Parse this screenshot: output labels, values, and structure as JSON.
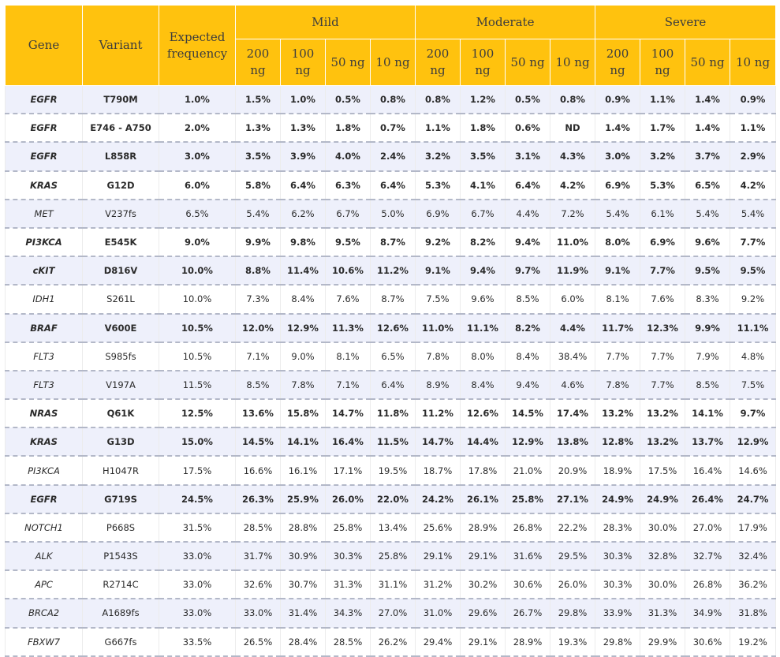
{
  "header": {
    "gene": "Gene",
    "variant": "Variant",
    "expected": "Expected frequency",
    "groups": [
      "Mild",
      "Moderate",
      "Severe"
    ],
    "amounts": [
      "200 ng",
      "100 ng",
      "50 ng",
      "10 ng"
    ]
  },
  "rows": [
    {
      "gene": "EGFR",
      "variant": "T790M",
      "expected": "1.0%",
      "vals": [
        "1.5%",
        "1.0%",
        "0.5%",
        "0.8%",
        "0.8%",
        "1.2%",
        "0.5%",
        "0.8%",
        "0.9%",
        "1.1%",
        "1.4%",
        "0.9%"
      ],
      "bold": true
    },
    {
      "gene": "EGFR",
      "variant": "E746 - A750",
      "expected": "2.0%",
      "vals": [
        "1.3%",
        "1.3%",
        "1.8%",
        "0.7%",
        "1.1%",
        "1.8%",
        "0.6%",
        "ND",
        "1.4%",
        "1.7%",
        "1.4%",
        "1.1%"
      ],
      "bold": true
    },
    {
      "gene": "EGFR",
      "variant": "L858R",
      "expected": "3.0%",
      "vals": [
        "3.5%",
        "3.9%",
        "4.0%",
        "2.4%",
        "3.2%",
        "3.5%",
        "3.1%",
        "4.3%",
        "3.0%",
        "3.2%",
        "3.7%",
        "2.9%"
      ],
      "bold": true
    },
    {
      "gene": "KRAS",
      "variant": "G12D",
      "expected": "6.0%",
      "vals": [
        "5.8%",
        "6.4%",
        "6.3%",
        "6.4%",
        "5.3%",
        "4.1%",
        "6.4%",
        "4.2%",
        "6.9%",
        "5.3%",
        "6.5%",
        "4.2%"
      ],
      "bold": true
    },
    {
      "gene": "MET",
      "variant": "V237fs",
      "expected": "6.5%",
      "vals": [
        "5.4%",
        "6.2%",
        "6.7%",
        "5.0%",
        "6.9%",
        "6.7%",
        "4.4%",
        "7.2%",
        "5.4%",
        "6.1%",
        "5.4%",
        "5.4%"
      ],
      "bold": false
    },
    {
      "gene": "PI3KCA",
      "variant": "E545K",
      "expected": "9.0%",
      "vals": [
        "9.9%",
        "9.8%",
        "9.5%",
        "8.7%",
        "9.2%",
        "8.2%",
        "9.4%",
        "11.0%",
        "8.0%",
        "6.9%",
        "9.6%",
        "7.7%"
      ],
      "bold": true
    },
    {
      "gene": "cKIT",
      "variant": "D816V",
      "expected": "10.0%",
      "vals": [
        "8.8%",
        "11.4%",
        "10.6%",
        "11.2%",
        "9.1%",
        "9.4%",
        "9.7%",
        "11.9%",
        "9.1%",
        "7.7%",
        "9.5%",
        "9.5%"
      ],
      "bold": true
    },
    {
      "gene": "IDH1",
      "variant": "S261L",
      "expected": "10.0%",
      "vals": [
        "7.3%",
        "8.4%",
        "7.6%",
        "8.7%",
        "7.5%",
        "9.6%",
        "8.5%",
        "6.0%",
        "8.1%",
        "7.6%",
        "8.3%",
        "9.2%"
      ],
      "bold": false
    },
    {
      "gene": "BRAF",
      "variant": "V600E",
      "expected": "10.5%",
      "vals": [
        "12.0%",
        "12.9%",
        "11.3%",
        "12.6%",
        "11.0%",
        "11.1%",
        "8.2%",
        "4.4%",
        "11.7%",
        "12.3%",
        "9.9%",
        "11.1%"
      ],
      "bold": true
    },
    {
      "gene": "FLT3",
      "variant": "S985fs",
      "expected": "10.5%",
      "vals": [
        "7.1%",
        "9.0%",
        "8.1%",
        "6.5%",
        "7.8%",
        "8.0%",
        "8.4%",
        "38.4%",
        "7.7%",
        "7.7%",
        "7.9%",
        "4.8%"
      ],
      "bold": false
    },
    {
      "gene": "FLT3",
      "variant": "V197A",
      "expected": "11.5%",
      "vals": [
        "8.5%",
        "7.8%",
        "7.1%",
        "6.4%",
        "8.9%",
        "8.4%",
        "9.4%",
        "4.6%",
        "7.8%",
        "7.7%",
        "8.5%",
        "7.5%"
      ],
      "bold": false
    },
    {
      "gene": "NRAS",
      "variant": "Q61K",
      "expected": "12.5%",
      "vals": [
        "13.6%",
        "15.8%",
        "14.7%",
        "11.8%",
        "11.2%",
        "12.6%",
        "14.5%",
        "17.4%",
        "13.2%",
        "13.2%",
        "14.1%",
        "9.7%"
      ],
      "bold": true
    },
    {
      "gene": "KRAS",
      "variant": "G13D",
      "expected": "15.0%",
      "vals": [
        "14.5%",
        "14.1%",
        "16.4%",
        "11.5%",
        "14.7%",
        "14.4%",
        "12.9%",
        "13.8%",
        "12.8%",
        "13.2%",
        "13.7%",
        "12.9%"
      ],
      "bold": true
    },
    {
      "gene": "PI3KCA",
      "variant": "H1047R",
      "expected": "17.5%",
      "vals": [
        "16.6%",
        "16.1%",
        "17.1%",
        "19.5%",
        "18.7%",
        "17.8%",
        "21.0%",
        "20.9%",
        "18.9%",
        "17.5%",
        "16.4%",
        "14.6%"
      ],
      "bold": false
    },
    {
      "gene": "EGFR",
      "variant": "G719S",
      "expected": "24.5%",
      "vals": [
        "26.3%",
        "25.9%",
        "26.0%",
        "22.0%",
        "24.2%",
        "26.1%",
        "25.8%",
        "27.1%",
        "24.9%",
        "24.9%",
        "26.4%",
        "24.7%"
      ],
      "bold": true
    },
    {
      "gene": "NOTCH1",
      "variant": "P668S",
      "expected": "31.5%",
      "vals": [
        "28.5%",
        "28.8%",
        "25.8%",
        "13.4%",
        "25.6%",
        "28.9%",
        "26.8%",
        "22.2%",
        "28.3%",
        "30.0%",
        "27.0%",
        "17.9%"
      ],
      "bold": false
    },
    {
      "gene": "ALK",
      "variant": "P1543S",
      "expected": "33.0%",
      "vals": [
        "31.7%",
        "30.9%",
        "30.3%",
        "25.8%",
        "29.1%",
        "29.1%",
        "31.6%",
        "29.5%",
        "30.3%",
        "32.8%",
        "32.7%",
        "32.4%"
      ],
      "bold": false
    },
    {
      "gene": "APC",
      "variant": "R2714C",
      "expected": "33.0%",
      "vals": [
        "32.6%",
        "30.7%",
        "31.3%",
        "31.1%",
        "31.2%",
        "30.2%",
        "30.6%",
        "26.0%",
        "30.3%",
        "30.0%",
        "26.8%",
        "36.2%"
      ],
      "bold": false
    },
    {
      "gene": "BRCA2",
      "variant": "A1689fs",
      "expected": "33.0%",
      "vals": [
        "33.0%",
        "31.4%",
        "34.3%",
        "27.0%",
        "31.0%",
        "29.6%",
        "26.7%",
        "29.8%",
        "33.9%",
        "31.3%",
        "34.9%",
        "31.8%"
      ],
      "bold": false
    },
    {
      "gene": "FBXW7",
      "variant": "G667fs",
      "expected": "33.5%",
      "vals": [
        "26.5%",
        "28.4%",
        "28.5%",
        "26.2%",
        "29.4%",
        "29.1%",
        "28.9%",
        "19.3%",
        "29.8%",
        "29.9%",
        "30.6%",
        "19.2%"
      ],
      "bold": false
    }
  ]
}
